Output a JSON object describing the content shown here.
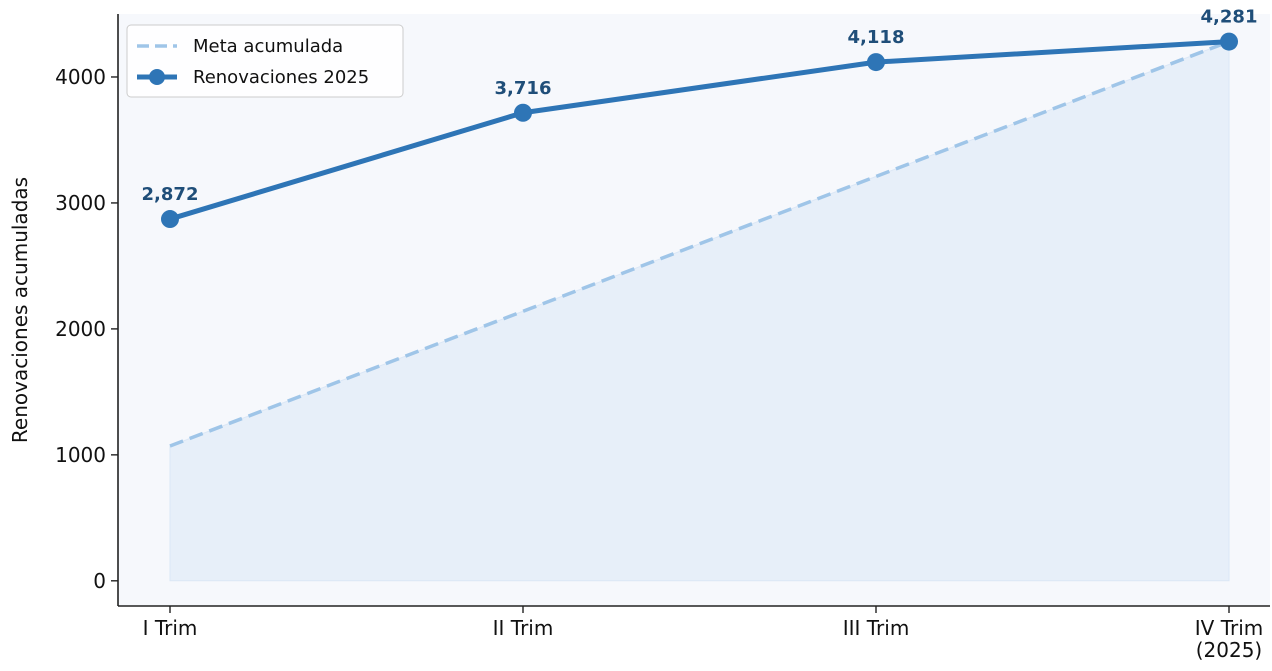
{
  "chart_data": {
    "type": "line",
    "title": "",
    "xlabel": "",
    "ylabel": "Renovaciones acumuladas",
    "categories": [
      [
        "I Trim"
      ],
      [
        "II Trim"
      ],
      [
        "III Trim"
      ],
      [
        "IV Trim",
        "(2025)"
      ]
    ],
    "ylim": [
      -200,
      4500
    ],
    "yticks": [
      0,
      1000,
      2000,
      3000,
      4000
    ],
    "ytick_labels": [
      "0",
      "1000",
      "2000",
      "3000",
      "4000"
    ],
    "grid": false,
    "legend_position": "top-left",
    "series": [
      {
        "name": "Meta acumulada",
        "style": "dashed",
        "color": "#9fc5e8",
        "values": [
          1070,
          2140,
          3210,
          4281
        ],
        "fill_under": true,
        "fill_color": "#dbe7f6"
      },
      {
        "name": "Renovaciones 2025",
        "style": "solid-markers",
        "color": "#2e75b6",
        "values": [
          2872,
          3716,
          4118,
          4281
        ],
        "data_labels": [
          "2,872",
          "3,716",
          "4,118",
          "4,281"
        ]
      }
    ],
    "plot_background": "#f6f8fc",
    "label_color": "#1f4e79"
  }
}
